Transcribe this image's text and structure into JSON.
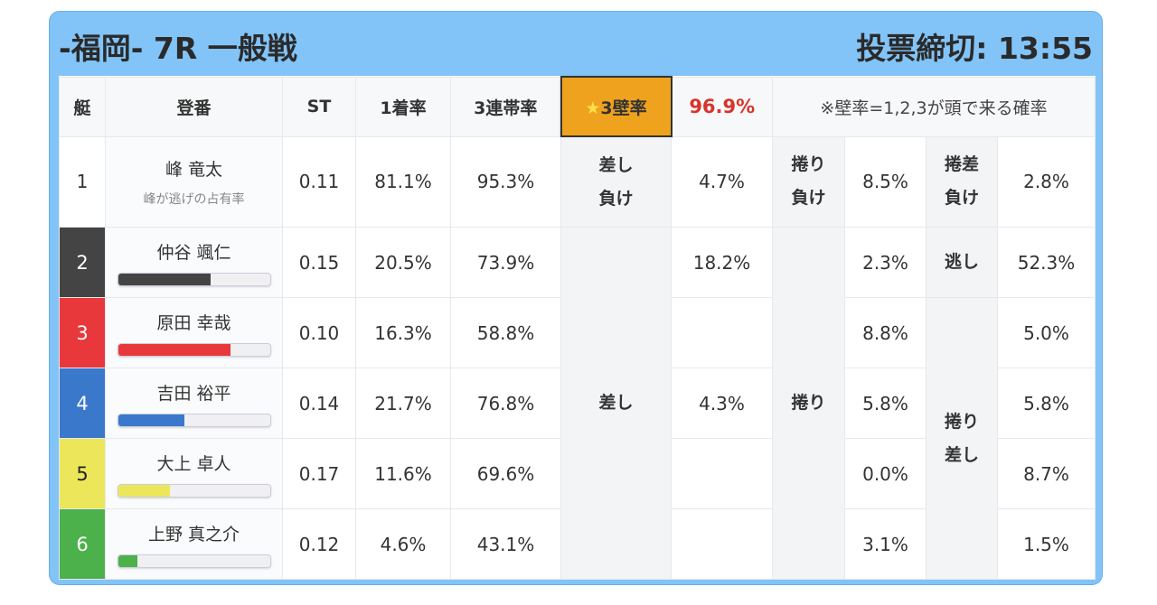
{
  "header": {
    "title": "-福岡- 7R 一般戦",
    "deadline": "投票締切: 13:55"
  },
  "columns": {
    "boat": "艇",
    "name": "登番",
    "st": "ST",
    "first": "1着率",
    "top3": "3連帯率",
    "wall_star": "★",
    "wall": "3壁率",
    "wall_rate": "96.9%",
    "note": "※壁率=1,2,3が頭で来る確率"
  },
  "boat_colors": {
    "1": "#ffffff",
    "2": "#444444",
    "3": "#e8383b",
    "4": "#3a78cc",
    "5": "#ece75a",
    "6": "#4cb14a"
  },
  "rows": [
    {
      "boat": "1",
      "name": "峰 竜太",
      "sub": "峰が逃げの占有率",
      "st": "0.11",
      "first": "81.1%",
      "top3": "95.3%"
    },
    {
      "boat": "2",
      "name": "仲谷 颯仁",
      "st": "0.15",
      "first": "20.5%",
      "top3": "73.9%",
      "bar": 61
    },
    {
      "boat": "3",
      "name": "原田 幸哉",
      "st": "0.10",
      "first": "16.3%",
      "top3": "58.8%",
      "bar": 74
    },
    {
      "boat": "4",
      "name": "吉田 裕平",
      "st": "0.14",
      "first": "21.7%",
      "top3": "76.8%",
      "bar": 44
    },
    {
      "boat": "5",
      "name": "大上 卓人",
      "st": "0.17",
      "first": "11.6%",
      "top3": "69.6%",
      "bar": 34
    },
    {
      "boat": "6",
      "name": "上野 真之介",
      "st": "0.12",
      "first": "4.6%",
      "top3": "43.1%",
      "bar": 13
    }
  ],
  "patterns": {
    "sashi_make": [
      "差し",
      "負け"
    ],
    "sashi_make_val": "4.7%",
    "makuri_make": [
      "捲り",
      "負け"
    ],
    "makuri_make_val": "8.5%",
    "makurisashi_make": [
      "捲差",
      "負け"
    ],
    "makurisashi_make_val": "2.8%",
    "sashi": "差し",
    "sashi_vals": [
      "18.2%",
      "",
      "4.3%",
      "",
      ""
    ],
    "makuri": "捲り",
    "makuri_vals": [
      "2.3%",
      "8.8%",
      "5.8%",
      "0.0%",
      "3.1%"
    ],
    "nige": "逃し",
    "nige_val": "52.3%",
    "makurisashi": [
      "捲り",
      "差し"
    ],
    "makurisashi_vals": [
      "5.0%",
      "5.8%",
      "8.7%",
      "1.5%"
    ]
  }
}
